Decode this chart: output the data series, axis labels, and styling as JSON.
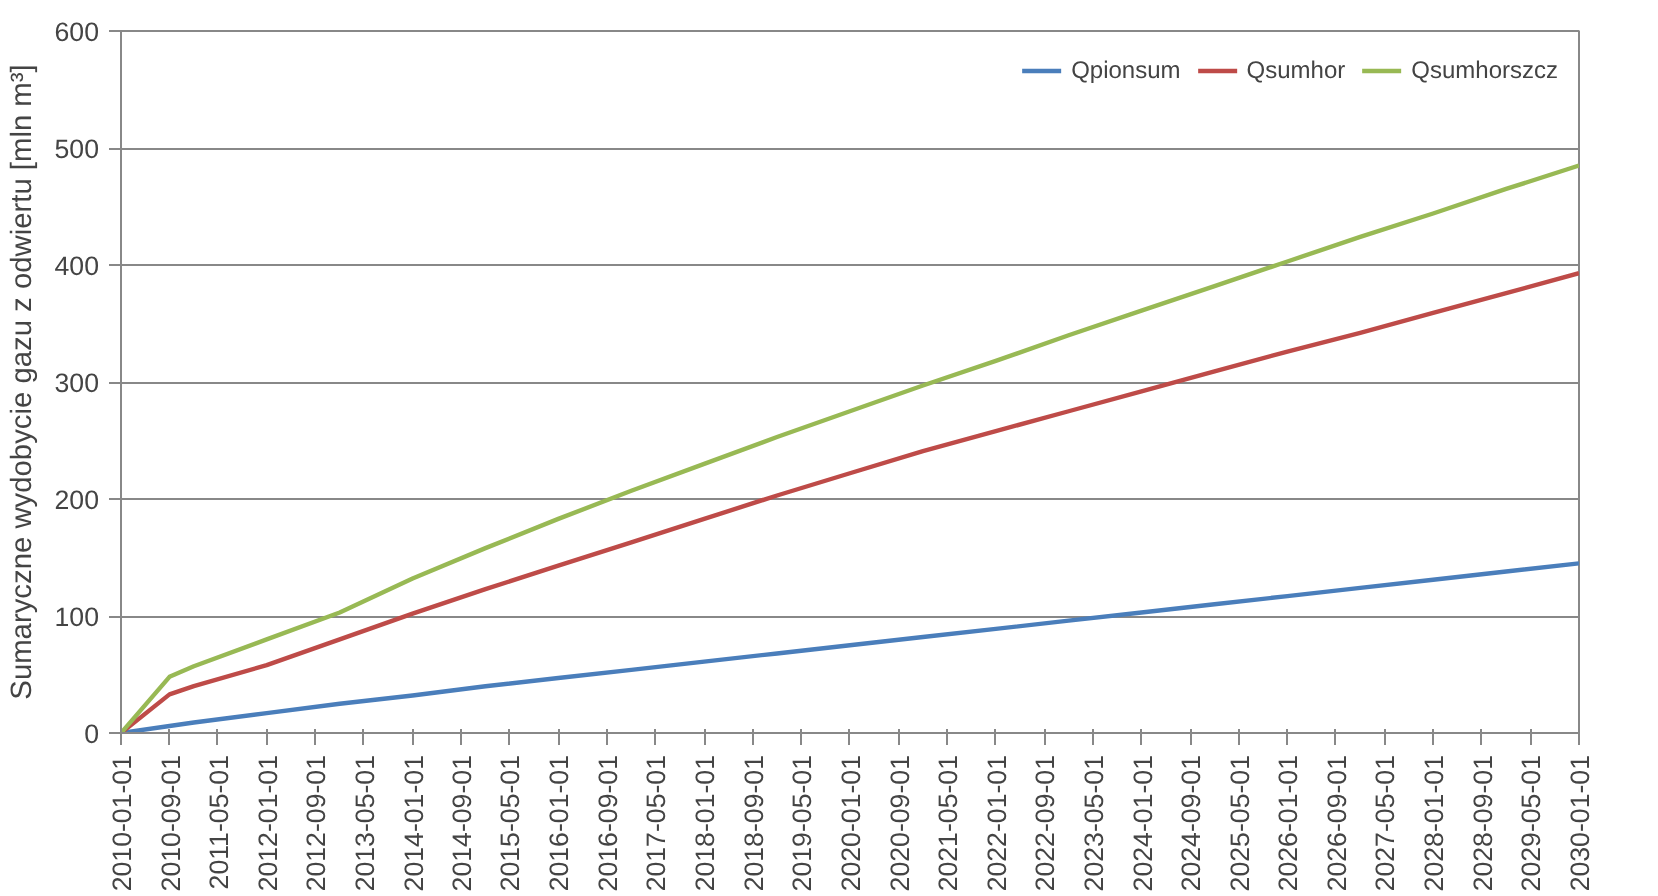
{
  "chart_data": {
    "type": "line",
    "ylabel": "Sumaryczne wydobycie gazu z odwiertu [mln m³]",
    "x": [
      "2010-01-01",
      "2010-09-01",
      "2011-01-01",
      "2012-01-01",
      "2013-01-01",
      "2014-01-01",
      "2015-01-01",
      "2016-01-01",
      "2017-01-01",
      "2018-01-01",
      "2019-01-01",
      "2020-01-01",
      "2021-01-01",
      "2022-01-01",
      "2023-01-01",
      "2024-01-01",
      "2025-01-01",
      "2026-01-01",
      "2027-01-01",
      "2028-01-01",
      "2029-01-01",
      "2030-01-01"
    ],
    "series": [
      {
        "name": "Qpionsum",
        "color": "#4a7ebb",
        "values": [
          0,
          6,
          9,
          17,
          25,
          32,
          40,
          47,
          54,
          61,
          68,
          75,
          82,
          89,
          96,
          103,
          110,
          117,
          124,
          131,
          138,
          145
        ]
      },
      {
        "name": "Qsumhor",
        "color": "#be4b48",
        "values": [
          0,
          33,
          40,
          58,
          80,
          102,
          123,
          143,
          163,
          183,
          203,
          222,
          241,
          258,
          275,
          292,
          309,
          326,
          342,
          359,
          376,
          393
        ]
      },
      {
        "name": "Qsumhorszcz",
        "color": "#98b954",
        "values": [
          0,
          48,
          57,
          80,
          103,
          132,
          158,
          183,
          207,
          230,
          253,
          275,
          297,
          318,
          340,
          361,
          382,
          403,
          424,
          444,
          465,
          485
        ]
      }
    ],
    "xlim": [
      "2010-01-01",
      "2030-01-01"
    ],
    "xticks": [
      "2010-01-01",
      "2010-09-01",
      "2011-05-01",
      "2012-01-01",
      "2012-09-01",
      "2013-05-01",
      "2014-01-01",
      "2014-09-01",
      "2015-05-01",
      "2016-01-01",
      "2016-09-01",
      "2017-05-01",
      "2018-01-01",
      "2018-09-01",
      "2019-05-01",
      "2020-01-01",
      "2020-09-01",
      "2021-05-01",
      "2022-01-01",
      "2022-09-01",
      "2023-05-01",
      "2024-01-01",
      "2024-09-01",
      "2025-05-01",
      "2026-01-01",
      "2026-09-01",
      "2027-05-01",
      "2028-01-01",
      "2028-09-01",
      "2029-05-01",
      "2030-01-01"
    ],
    "ylim": [
      0,
      600
    ],
    "yticks": [
      0,
      100,
      200,
      300,
      400,
      500,
      600
    ],
    "grid": "y",
    "legend": "top right",
    "line_style": "solid",
    "marker": "none"
  }
}
